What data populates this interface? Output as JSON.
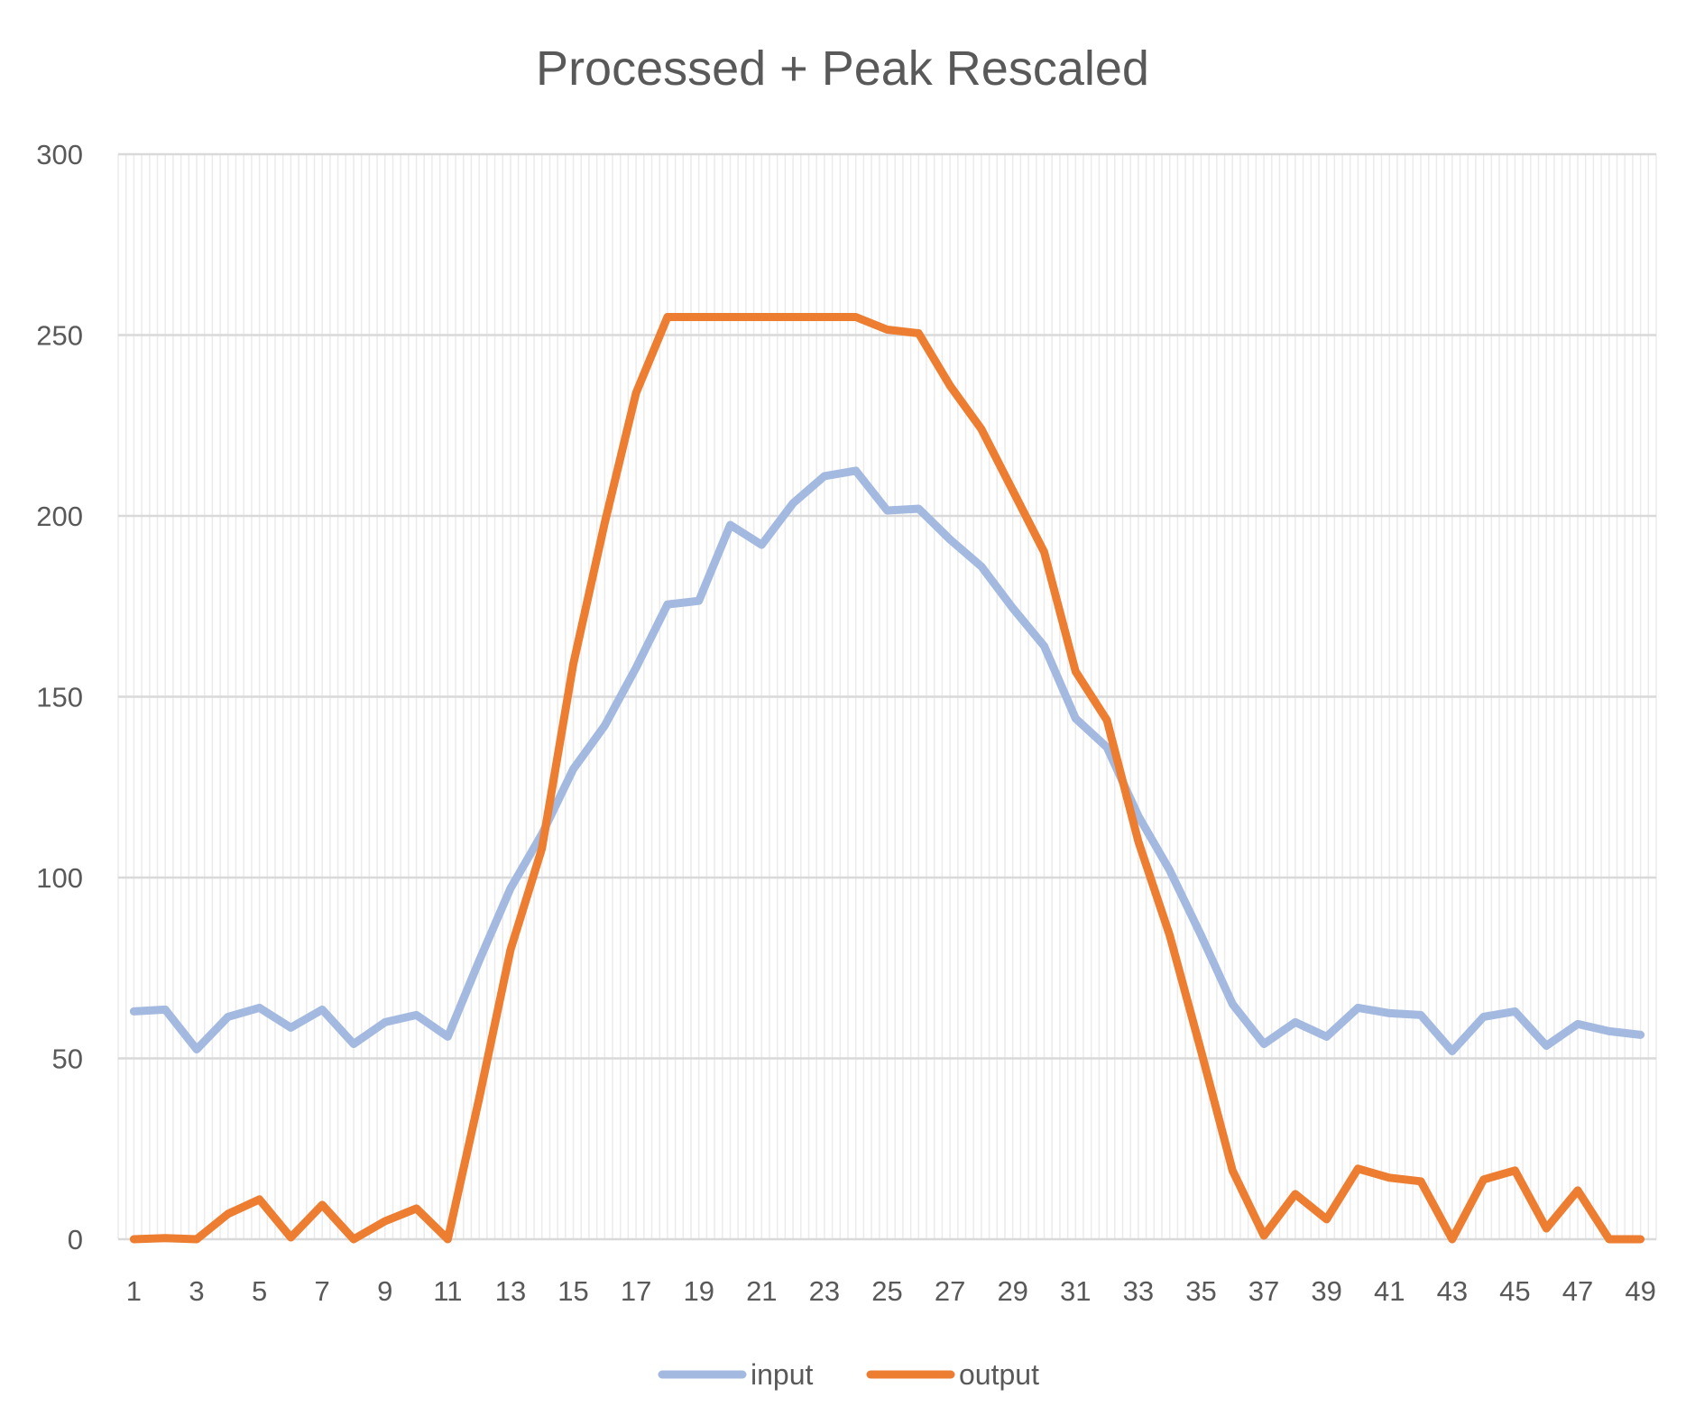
{
  "chart_data": {
    "type": "line",
    "title": "Processed + Peak Rescaled",
    "xlabel": "",
    "ylabel": "",
    "ylim": [
      0,
      300
    ],
    "yticks": [
      0,
      50,
      100,
      150,
      200,
      250,
      300
    ],
    "x": [
      1,
      2,
      3,
      4,
      5,
      6,
      7,
      8,
      9,
      10,
      11,
      12,
      13,
      14,
      15,
      16,
      17,
      18,
      19,
      20,
      21,
      22,
      23,
      24,
      25,
      26,
      27,
      28,
      29,
      30,
      31,
      32,
      33,
      34,
      35,
      36,
      37,
      38,
      39,
      40,
      41,
      42,
      43,
      44,
      45,
      46,
      47,
      48,
      49
    ],
    "xtick_labels": [
      "1",
      "3",
      "5",
      "7",
      "9",
      "11",
      "13",
      "15",
      "17",
      "19",
      "21",
      "23",
      "25",
      "27",
      "29",
      "31",
      "33",
      "35",
      "37",
      "39",
      "41",
      "43",
      "45",
      "47",
      "49"
    ],
    "grid": true,
    "legend_position": "bottom",
    "series": [
      {
        "name": "input",
        "color": "#a3b9e0",
        "values": [
          63,
          63.5,
          52.5,
          61.5,
          64,
          58.5,
          63.5,
          54,
          60,
          62,
          56,
          77,
          97,
          112,
          130,
          142,
          158,
          175.5,
          176.5,
          197.5,
          192,
          203.5,
          211,
          212.5,
          201.5,
          202,
          193.5,
          186,
          174.5,
          164,
          144,
          136,
          117,
          102,
          84,
          65,
          54,
          60,
          56,
          64,
          62.5,
          62,
          52,
          61.5,
          63,
          53.5,
          59.5,
          57.5,
          56.5
        ]
      },
      {
        "name": "output",
        "color": "#ed7d31",
        "values": [
          0,
          0.3,
          0,
          7,
          11,
          0.5,
          9.5,
          0,
          5,
          8.5,
          0,
          39,
          80,
          108,
          159,
          198,
          234,
          255,
          255,
          255,
          255,
          255,
          255,
          255,
          251.5,
          250.5,
          236,
          224,
          207,
          190,
          157,
          143.5,
          110,
          84,
          52,
          19,
          1,
          12.5,
          5.5,
          19.5,
          17,
          16,
          0,
          16.5,
          19,
          3,
          13.5,
          0,
          0
        ]
      }
    ]
  }
}
